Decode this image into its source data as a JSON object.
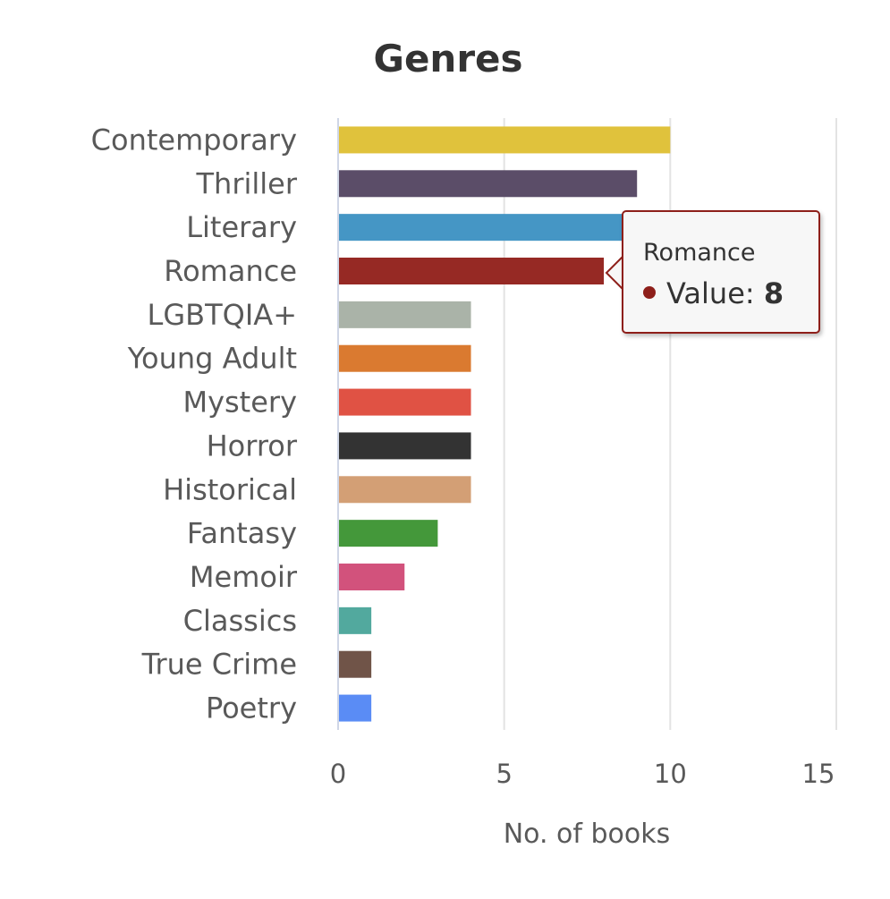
{
  "chart_data": {
    "type": "bar",
    "orientation": "horizontal",
    "title": "Genres",
    "xlabel": "No. of books",
    "ylabel": "",
    "xlim": [
      0,
      15
    ],
    "xticks": [
      0,
      5,
      10,
      15
    ],
    "grid": true,
    "categories": [
      "Contemporary",
      "Thriller",
      "Literary",
      "Romance",
      "LGBTQIA+",
      "Young Adult",
      "Mystery",
      "Horror",
      "Historical",
      "Fantasy",
      "Memoir",
      "Classics",
      "True Crime",
      "Poetry"
    ],
    "values": [
      10,
      9,
      9,
      8,
      4,
      4,
      4,
      4,
      4,
      3,
      2,
      1,
      1,
      1
    ],
    "colors": [
      "#e0c23c",
      "#5b4d68",
      "#4596c5",
      "#962924",
      "#aab3a8",
      "#da7a30",
      "#e05244",
      "#333333",
      "#d39f75",
      "#44983a",
      "#d2527c",
      "#52a99e",
      "#705448",
      "#5a8cf5"
    ],
    "tooltip": {
      "category": "Romance",
      "label": "Value: ",
      "value": "8",
      "border_color": "#8e1f1a"
    }
  }
}
